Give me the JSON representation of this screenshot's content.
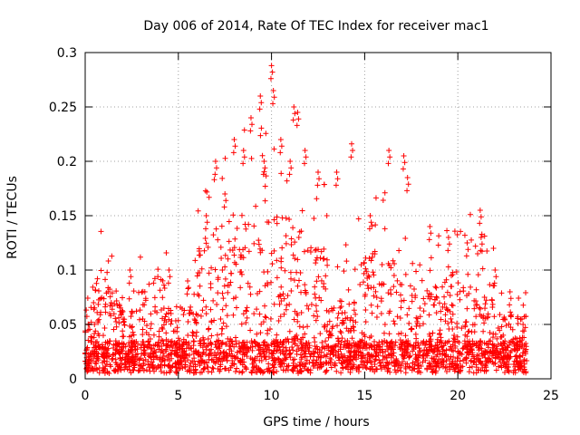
{
  "chart_data": {
    "type": "scatter",
    "title": "Day 006 of 2014, Rate Of TEC Index for receiver mac1",
    "xlabel": "GPS time / hours",
    "ylabel": "ROTI / TECUs",
    "xlim": [
      0,
      25
    ],
    "ylim": [
      0,
      0.3
    ],
    "xticks": [
      0,
      5,
      10,
      15,
      20,
      25
    ],
    "yticks": [
      0,
      0.05,
      0.1,
      0.15,
      0.2,
      0.25,
      0.3
    ],
    "xtick_labels": [
      "0",
      "5",
      "10",
      "15",
      "20",
      "25"
    ],
    "ytick_labels": [
      "0",
      "0.05",
      "0.1",
      "0.15",
      "0.2",
      "0.25",
      "0.3"
    ],
    "grid": true,
    "marker": "+",
    "color": "#ff0000",
    "series": [
      {
        "name": "ROTI",
        "envelope_description_hours": [
          0,
          23.7
        ],
        "notable_points": [
          {
            "x": 0.5,
            "y": 0.05
          },
          {
            "x": 1.4,
            "y": 0.07
          },
          {
            "x": 2.4,
            "y": 0.1
          },
          {
            "x": 3.2,
            "y": 0.08
          },
          {
            "x": 4.5,
            "y": 0.1
          },
          {
            "x": 5.5,
            "y": 0.09
          },
          {
            "x": 6.5,
            "y": 0.15
          },
          {
            "x": 7.0,
            "y": 0.2
          },
          {
            "x": 7.5,
            "y": 0.17
          },
          {
            "x": 8.0,
            "y": 0.22
          },
          {
            "x": 8.5,
            "y": 0.21
          },
          {
            "x": 8.9,
            "y": 0.24
          },
          {
            "x": 9.4,
            "y": 0.26
          },
          {
            "x": 9.6,
            "y": 0.2
          },
          {
            "x": 10.0,
            "y": 0.288
          },
          {
            "x": 10.1,
            "y": 0.265
          },
          {
            "x": 10.5,
            "y": 0.22
          },
          {
            "x": 11.2,
            "y": 0.25
          },
          {
            "x": 11.4,
            "y": 0.245
          },
          {
            "x": 11.0,
            "y": 0.2
          },
          {
            "x": 11.8,
            "y": 0.21
          },
          {
            "x": 12.5,
            "y": 0.19
          },
          {
            "x": 13.5,
            "y": 0.19
          },
          {
            "x": 14.3,
            "y": 0.216
          },
          {
            "x": 15.3,
            "y": 0.15
          },
          {
            "x": 16.3,
            "y": 0.21
          },
          {
            "x": 17.1,
            "y": 0.205
          },
          {
            "x": 17.3,
            "y": 0.185
          },
          {
            "x": 18.5,
            "y": 0.14
          },
          {
            "x": 19.5,
            "y": 0.13
          },
          {
            "x": 20.5,
            "y": 0.125
          },
          {
            "x": 21.2,
            "y": 0.155
          },
          {
            "x": 21.25,
            "y": 0.13
          },
          {
            "x": 22.0,
            "y": 0.1
          },
          {
            "x": 22.8,
            "y": 0.08
          },
          {
            "x": 23.5,
            "y": 0.05
          }
        ]
      }
    ]
  }
}
